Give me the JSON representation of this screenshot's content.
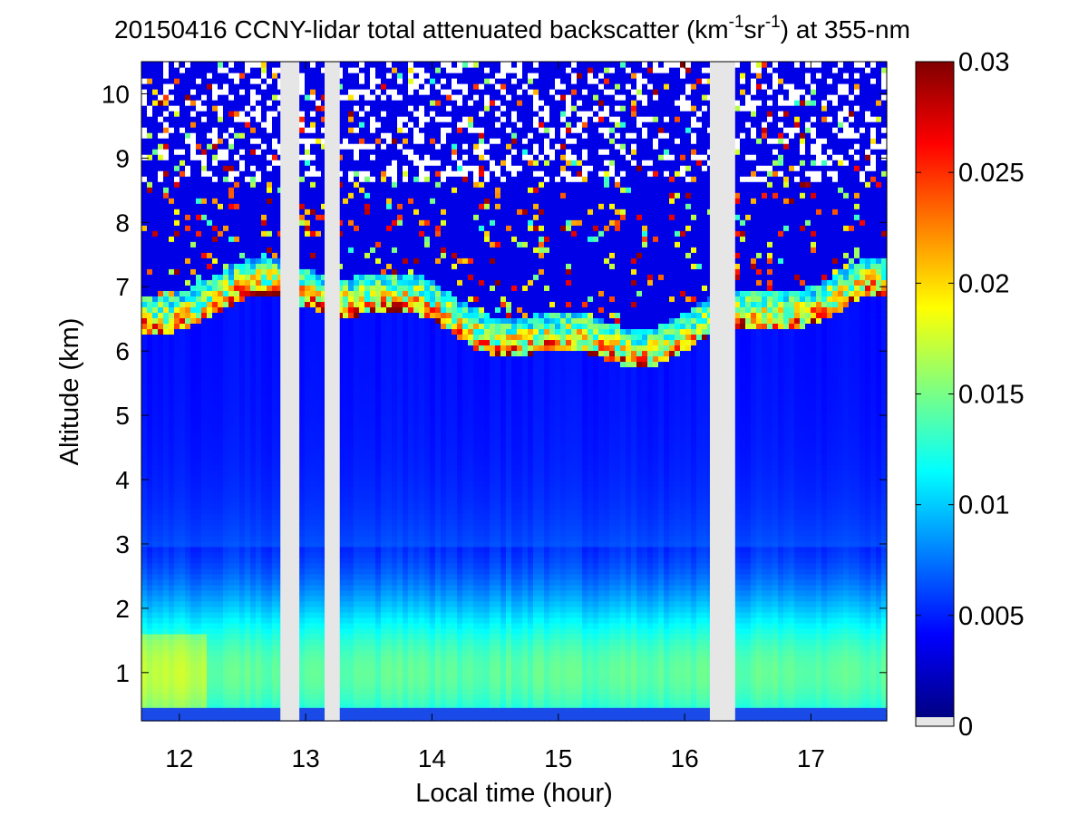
{
  "chart_data": {
    "type": "heatmap",
    "title": {
      "prefix": "20150416 CCNY-lidar total attenuated backscatter (km",
      "sup1": "-1",
      "mid": "sr",
      "sup2": "-1",
      "suffix": ") at 355-nm"
    },
    "xlabel": "Local time (hour)",
    "ylabel": "Altitude (km)",
    "xlim": [
      11.7,
      17.6
    ],
    "ylim": [
      0.25,
      10.5
    ],
    "xticks": [
      12,
      13,
      14,
      15,
      16,
      17
    ],
    "xtick_labels": [
      "12",
      "13",
      "14",
      "15",
      "16",
      "17"
    ],
    "yticks": [
      1,
      2,
      3,
      4,
      5,
      6,
      7,
      8,
      9,
      10
    ],
    "ytick_labels": [
      "1",
      "2",
      "3",
      "4",
      "5",
      "6",
      "7",
      "8",
      "9",
      "10"
    ],
    "colorbar": {
      "colormap": "jet",
      "clim": [
        0,
        0.03
      ],
      "ticks": [
        0,
        0.005,
        0.01,
        0.015,
        0.02,
        0.025,
        0.03
      ],
      "tick_labels": [
        "0",
        "0.005",
        "0.01",
        "0.015",
        "0.02",
        "0.025",
        "0.03"
      ],
      "missing_color": "#e6e6e6"
    },
    "missing_data_intervals_hour": [
      [
        12.8,
        12.95
      ],
      [
        13.15,
        13.27
      ],
      [
        16.2,
        16.4
      ]
    ],
    "aerosol_boundary_layer": {
      "top_km": 3.0,
      "peak_km": 1.0,
      "peak_value": 0.014
    },
    "cirrus_cloud_layer": {
      "base_km_range": [
        6.0,
        7.0
      ],
      "top_km_range": [
        8.0,
        10.0
      ],
      "max_value": 0.03
    },
    "background_value_free_troposphere": 0.004,
    "colors": {
      "missing": "#e6e6e6",
      "background": "#ffffff",
      "axis": "#000000"
    }
  }
}
